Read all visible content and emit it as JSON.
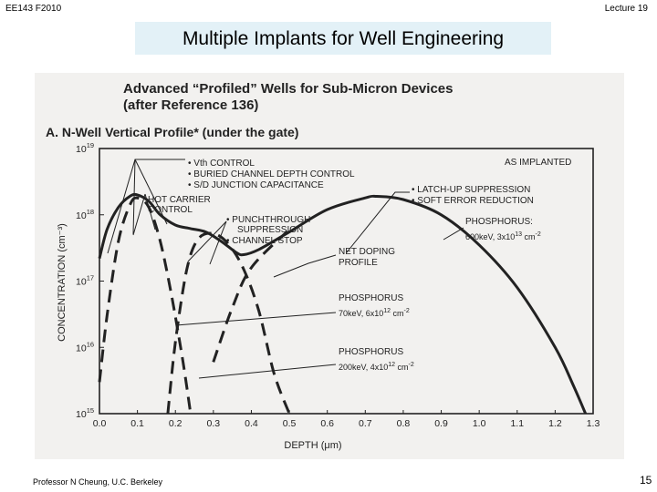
{
  "header": {
    "left": "EE143 F2010",
    "right": "Lecture 19"
  },
  "slide_title": "Multiple Implants for Well Engineering",
  "figure": {
    "heading_line1": "Advanced “Profiled” Wells for Sub-Micron Devices",
    "heading_line2": "(after Reference 136)",
    "section_title": "A. N-Well Vertical Profile* (under the gate)"
  },
  "chart_data": {
    "type": "line",
    "xlabel": "DEPTH (μm)",
    "ylabel": "CONCENTRATION (cm⁻³)",
    "xlim": [
      0.0,
      1.3
    ],
    "ylim": [
      1000000000000000.0,
      1e+19
    ],
    "y_scale": "log",
    "x_ticks": [
      "0.0",
      "0.1",
      "0.2",
      "0.3",
      "0.4",
      "0.5",
      "0.6",
      "0.7",
      "0.8",
      "0.9",
      "1.0",
      "1.1",
      "1.2",
      "1.3"
    ],
    "y_ticks": [
      {
        "base": "10",
        "exp": "19"
      },
      {
        "base": "10",
        "exp": "18"
      },
      {
        "base": "10",
        "exp": "17"
      },
      {
        "base": "10",
        "exp": "16"
      },
      {
        "base": "10",
        "exp": "15"
      }
    ],
    "series": [
      {
        "name": "NET DOPING PROFILE",
        "style": "solid",
        "points": [
          [
            0.0,
            2.2e+17
          ],
          [
            0.02,
            6e+17
          ],
          [
            0.05,
            1.3e+18
          ],
          [
            0.08,
            1.9e+18
          ],
          [
            0.1,
            2e+18
          ],
          [
            0.13,
            1.6e+18
          ],
          [
            0.16,
            1e+18
          ],
          [
            0.2,
            7e+17
          ],
          [
            0.24,
            6.2e+17
          ],
          [
            0.28,
            5.5e+17
          ],
          [
            0.32,
            4e+17
          ],
          [
            0.36,
            2.7e+17
          ],
          [
            0.38,
            2.5e+17
          ],
          [
            0.42,
            3e+17
          ],
          [
            0.5,
            5.5e+17
          ],
          [
            0.6,
            1.2e+18
          ],
          [
            0.7,
            1.8e+18
          ],
          [
            0.73,
            1.9e+18
          ],
          [
            0.8,
            1.7e+18
          ],
          [
            0.9,
            1e+18
          ],
          [
            1.0,
            3.5e+17
          ],
          [
            1.1,
            8e+16
          ],
          [
            1.2,
            1e+16
          ],
          [
            1.25,
            2500000000000000.0
          ],
          [
            1.28,
            1000000000000000.0
          ]
        ]
      },
      {
        "name": "PHOSPHORUS 70keV, 6x10^12 cm^-2",
        "style": "dashed",
        "points": [
          [
            0.0,
            3000000000000000.0
          ],
          [
            0.02,
            3e+16
          ],
          [
            0.05,
            4e+17
          ],
          [
            0.08,
            1.4e+18
          ],
          [
            0.1,
            1.8e+18
          ],
          [
            0.13,
            1.3e+18
          ],
          [
            0.16,
            4e+17
          ],
          [
            0.19,
            6e+16
          ],
          [
            0.22,
            6000000000000000.0
          ],
          [
            0.24,
            1000000000000000.0
          ]
        ]
      },
      {
        "name": "PHOSPHORUS 200keV, 4x10^12 cm^-2",
        "style": "dashed",
        "points": [
          [
            0.18,
            1000000000000000.0
          ],
          [
            0.2,
            1.2e+16
          ],
          [
            0.23,
            1.5e+17
          ],
          [
            0.26,
            4.3e+17
          ],
          [
            0.3,
            5.2e+17
          ],
          [
            0.34,
            3.6e+17
          ],
          [
            0.38,
            1.5e+17
          ],
          [
            0.42,
            3.5e+16
          ],
          [
            0.46,
            4000000000000000.0
          ],
          [
            0.5,
            1000000000000000.0
          ]
        ]
      },
      {
        "name": "PHOSPHORUS 600keV, 3x10^13 cm^-2",
        "style": "dashed",
        "points": [
          [
            0.3,
            6000000000000000.0
          ],
          [
            0.35,
            4e+16
          ],
          [
            0.4,
            1.6e+17
          ],
          [
            0.5,
            6e+17
          ]
        ]
      }
    ],
    "annotations": {
      "as_implanted": "AS IMPLANTED",
      "vth_list": [
        "• Vth CONTROL",
        "• BURIED CHANNEL DEPTH CONTROL",
        "• S/D JUNCTION CAPACITANCE"
      ],
      "hot_carrier": [
        "HOT CARRIER",
        "CONTROL"
      ],
      "punchthrough": [
        "• PUNCHTHROUGH",
        "SUPPRESSION",
        "• CHANNEL STOP"
      ],
      "latchup": [
        "• LATCH-UP SUPPRESSION",
        "• SOFT ERROR REDUCTION"
      ],
      "phos600": {
        "line1": "PHOSPHORUS:",
        "line2": "600keV, 3x10",
        "exp": "13",
        "unit": " cm",
        "unit_exp": "-2"
      },
      "net_doping": [
        "NET DOPING",
        "PROFILE"
      ],
      "phos70": {
        "line1": "PHOSPHORUS",
        "line2": "70keV, 6x10",
        "exp": "12",
        "unit": " cm",
        "unit_exp": "-2"
      },
      "phos200": {
        "line1": "PHOSPHORUS",
        "line2": "200keV, 4x10",
        "exp": "12",
        "unit": " cm",
        "unit_exp": "-2"
      }
    }
  },
  "footer": {
    "left": "Professor N Cheung, U.C. Berkeley",
    "page_number": "15"
  }
}
